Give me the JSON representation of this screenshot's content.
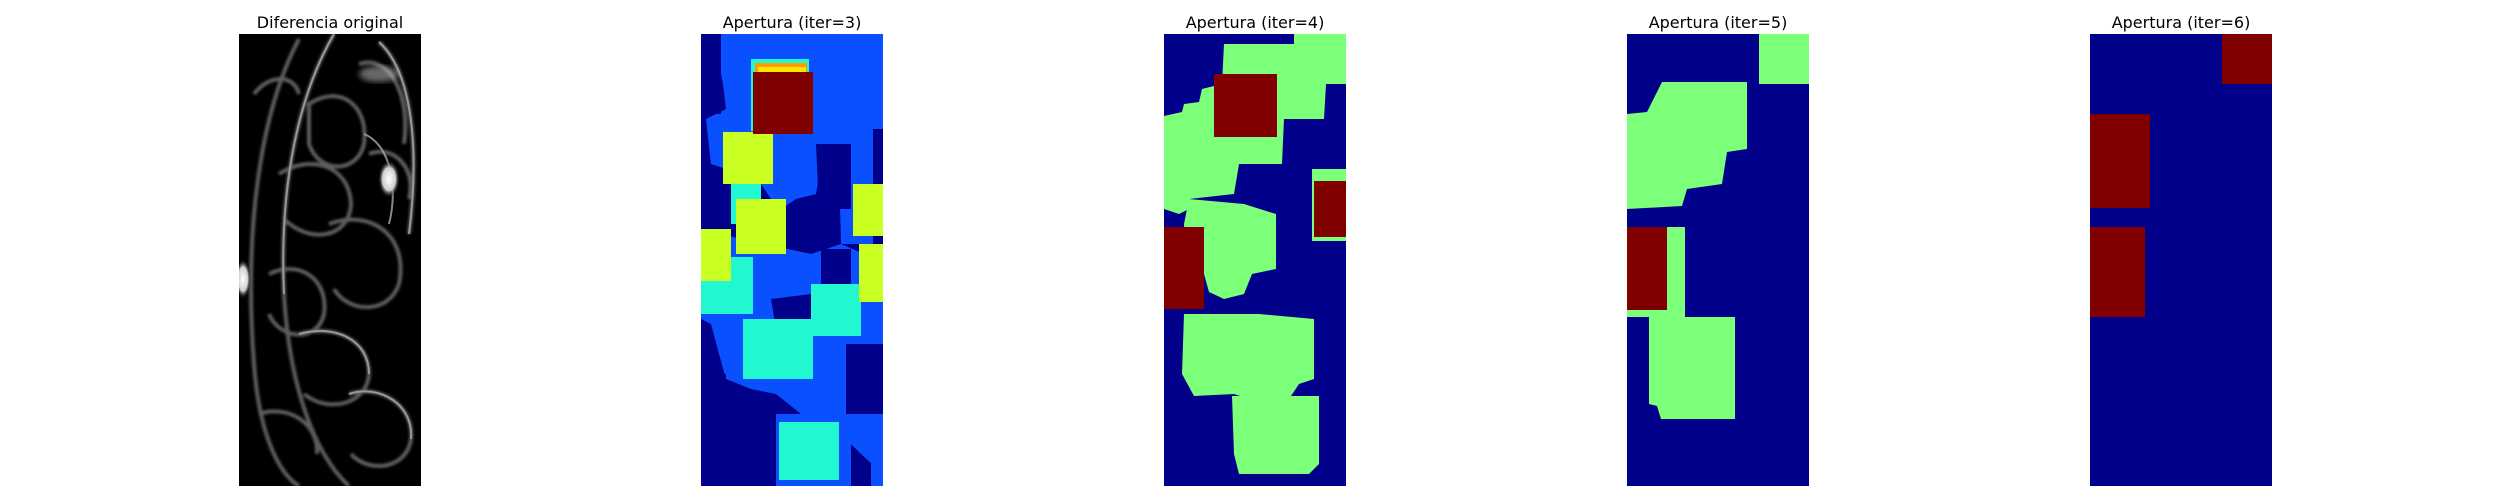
{
  "figure": {
    "panels": [
      {
        "title": "Diferencia original",
        "image_kind": "grayscale difference map",
        "colormap": "gray"
      },
      {
        "title": "Apertura (iter=3)",
        "image_kind": "label map after morphological opening",
        "colormap": "jet"
      },
      {
        "title": "Apertura (iter=4)",
        "image_kind": "label map after morphological opening",
        "colormap": "jet"
      },
      {
        "title": "Apertura (iter=5)",
        "image_kind": "label map after morphological opening",
        "colormap": "jet"
      },
      {
        "title": "Apertura (iter=6)",
        "image_kind": "label map after morphological opening",
        "colormap": "jet"
      }
    ],
    "palette": {
      "navy": "#00008b",
      "blue": "#0a50ff",
      "cyan": "#21f8cf",
      "lime": "#caff24",
      "green": "#7cff79",
      "orange": "#ff9b00",
      "red": "#800000",
      "black": "#000000",
      "white": "#ffffff"
    }
  }
}
